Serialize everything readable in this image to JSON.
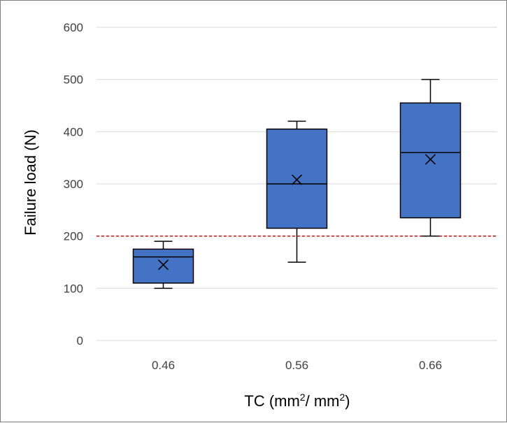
{
  "chart_data": {
    "type": "box",
    "title": "",
    "xlabel": {
      "main": "TC (mm",
      "sup1": "2",
      "middle": "/ mm",
      "sup2": "2",
      "end": ")"
    },
    "ylabel": "Failure load (N)",
    "categories": [
      "0.46",
      "0.56",
      "0.66"
    ],
    "ylim": [
      0,
      600
    ],
    "yticks": [
      0,
      100,
      200,
      300,
      400,
      500,
      600
    ],
    "grid": true,
    "legend": "none",
    "series": [
      {
        "boxes": [
          {
            "category": "0.46",
            "min": 100,
            "q1": 110,
            "median": 160,
            "q3": 175,
            "max": 190,
            "mean": 145
          },
          {
            "category": "0.56",
            "min": 150,
            "q1": 215,
            "median": 300,
            "q3": 405,
            "max": 420,
            "mean": 308
          },
          {
            "category": "0.66",
            "min": 200,
            "q1": 235,
            "median": 360,
            "q3": 455,
            "max": 500,
            "mean": 347
          }
        ]
      }
    ],
    "reference_line": {
      "y": 200,
      "style": "dashed",
      "color": "#c00000"
    },
    "colors": {
      "box_fill": "#4472c4",
      "box_stroke": "#000000",
      "grid": "#d9d9d9",
      "reference": "#c00000"
    }
  }
}
